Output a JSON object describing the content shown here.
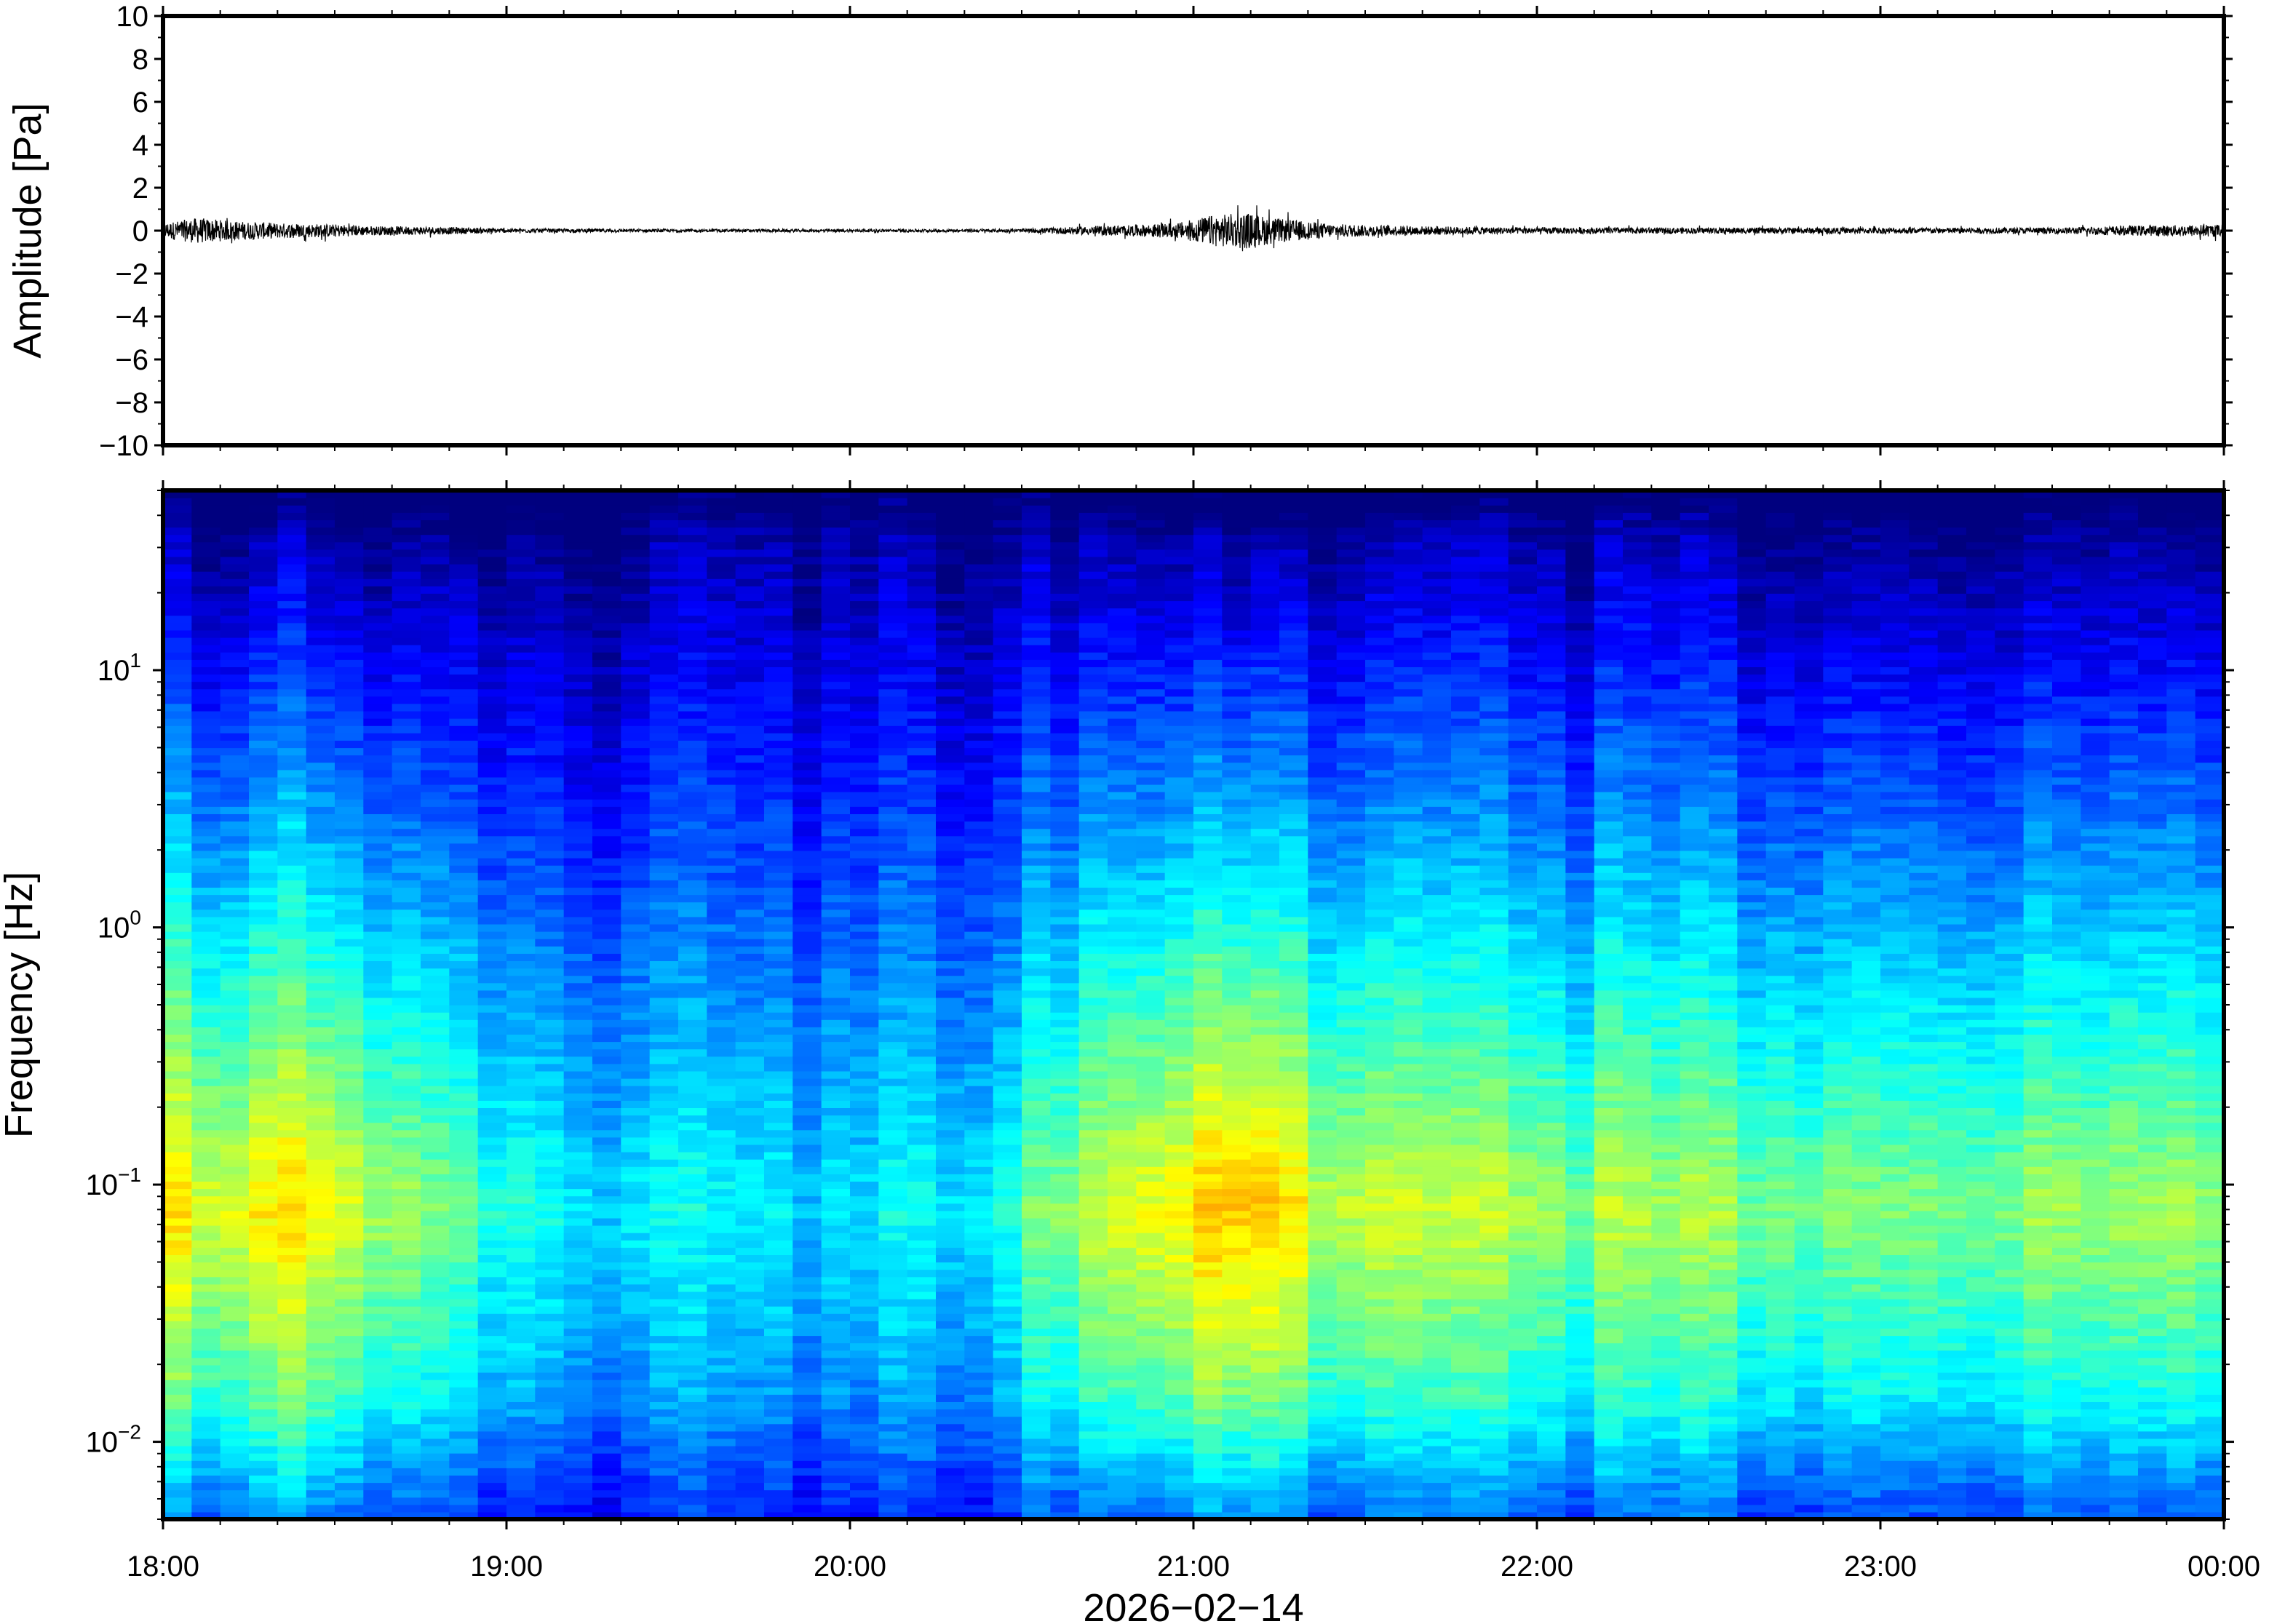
{
  "chart_data": [
    {
      "type": "line",
      "panel": "waveform",
      "ylabel": "Amplitude [Pa]",
      "ylim": [
        -10,
        10
      ],
      "yticks": [
        10,
        8,
        6,
        4,
        2,
        0,
        -2,
        -4,
        -6,
        -8,
        -10
      ],
      "ytick_labels": [
        "10",
        "8",
        "6",
        "4",
        "2",
        "0",
        "−2",
        "−4",
        "−6",
        "−8",
        "−10"
      ],
      "xlim_hours": [
        18,
        24
      ],
      "envelope": {
        "x_hours": [
          18.0,
          18.1,
          18.2,
          18.35,
          18.5,
          18.6,
          18.8,
          19.0,
          19.5,
          20.0,
          20.5,
          20.6,
          20.8,
          20.95,
          21.05,
          21.15,
          21.25,
          21.4,
          21.6,
          21.8,
          22.0,
          22.5,
          23.0,
          23.5,
          23.7,
          24.0
        ],
        "amplitude_pa": [
          0.35,
          0.6,
          0.45,
          0.35,
          0.3,
          0.22,
          0.18,
          0.1,
          0.07,
          0.07,
          0.08,
          0.15,
          0.25,
          0.35,
          0.7,
          0.85,
          0.55,
          0.32,
          0.22,
          0.18,
          0.15,
          0.14,
          0.14,
          0.14,
          0.22,
          0.3
        ]
      },
      "line_color": "#000000"
    },
    {
      "type": "heatmap",
      "panel": "spectrogram",
      "ylabel": "Frequency [Hz]",
      "yscale": "log",
      "ylim": [
        0.005,
        50
      ],
      "yticks": [
        {
          "base": "10",
          "exp": "1",
          "value": 10
        },
        {
          "base": "10",
          "exp": "0",
          "value": 1
        },
        {
          "base": "10",
          "exp": "−1",
          "value": 0.1
        },
        {
          "base": "10",
          "exp": "−2",
          "value": 0.01
        }
      ],
      "xlim_hours": [
        18,
        24
      ],
      "xticks": [
        "18:00",
        "19:00",
        "20:00",
        "21:00",
        "22:00",
        "23:00",
        "00:00"
      ],
      "xlabel": "2026−02−14",
      "colormap": [
        "#00007f",
        "#0000ff",
        "#007fff",
        "#00ffff",
        "#7fff7f",
        "#ffff00",
        "#ff7f00",
        "#ff0000"
      ],
      "relative_power_profile": {
        "time_hours": [
          18.0,
          18.5,
          19.0,
          19.5,
          20.0,
          20.5,
          20.6,
          21.0,
          21.15,
          21.4,
          22.0,
          23.0,
          24.0
        ],
        "level": [
          0.72,
          0.7,
          0.48,
          0.4,
          0.38,
          0.45,
          0.6,
          0.75,
          0.82,
          0.66,
          0.6,
          0.58,
          0.62
        ]
      }
    }
  ]
}
